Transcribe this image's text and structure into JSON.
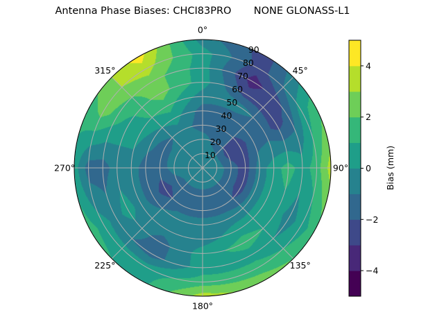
{
  "chart_data": {
    "type": "heatmap",
    "subtype": "polar-contour",
    "title": "Antenna Phase Biases: CHCI83PRO       NONE GLONASS-L1",
    "colorbar_label": "Bias (mm)",
    "colormap": "viridis",
    "levels": [
      -5,
      -4,
      -3,
      -2,
      -1,
      0,
      1,
      2,
      3,
      4,
      5
    ],
    "level_colors": [
      "#440154",
      "#482878",
      "#3e4989",
      "#31688e",
      "#26828e",
      "#1f9e89",
      "#35b779",
      "#6ece58",
      "#b5de2b",
      "#fde725"
    ],
    "colorbar_ticks": [
      "−4",
      "−2",
      "0",
      "2",
      "4"
    ],
    "colorbar_tick_values": [
      -4,
      -2,
      0,
      2,
      4
    ],
    "angular_direction": "clockwise",
    "angular_zero": "top",
    "angular_ticks": [
      "0°",
      "45°",
      "90°",
      "135°",
      "180°",
      "225°",
      "270°",
      "315°"
    ],
    "radial_ticks": [
      "10",
      "20",
      "30",
      "40",
      "50",
      "60",
      "70",
      "80",
      "90"
    ],
    "radial_range": [
      0,
      90
    ],
    "grid": true,
    "azimuth_deg": [
      0,
      30,
      60,
      90,
      120,
      150,
      180,
      210,
      240,
      270,
      300,
      330
    ],
    "zenith_deg": [
      0,
      10,
      20,
      30,
      40,
      50,
      60,
      70,
      80,
      90
    ],
    "bias_mm": [
      [
        -0.5,
        -0.5,
        -0.5,
        -1.5,
        -1.5,
        -0.5,
        0.5,
        0.5,
        0.5,
        -0.5
      ],
      [
        -0.5,
        -0.5,
        -1.5,
        -1.5,
        -1.5,
        -0.5,
        -2.5,
        -3.5,
        -2.5,
        -2.5
      ],
      [
        -0.5,
        -0.5,
        -2.5,
        -2.5,
        -1.5,
        -1.5,
        -2.5,
        -1.5,
        0.5,
        1.5
      ],
      [
        -0.5,
        -0.5,
        -1.5,
        -2.5,
        -0.5,
        0.5,
        1.5,
        0.5,
        1.5,
        3.5
      ],
      [
        -0.5,
        -0.5,
        -1.5,
        -2.5,
        -0.5,
        0.5,
        0.5,
        -0.5,
        0.5,
        1.5
      ],
      [
        -0.5,
        -0.5,
        -1.5,
        -1.5,
        -0.5,
        0.5,
        1.5,
        0.5,
        1.5,
        2.5
      ],
      [
        -0.5,
        -0.5,
        -1.5,
        -1.5,
        -0.5,
        -0.5,
        0.5,
        0.5,
        1.5,
        3.5
      ],
      [
        -0.5,
        -0.5,
        -1.5,
        -1.5,
        -0.5,
        -0.5,
        -1.5,
        -1.5,
        0.5,
        0.5
      ],
      [
        -0.5,
        -0.5,
        -1.5,
        -2.5,
        -1.5,
        -0.5,
        0.5,
        -0.5,
        0.5,
        1.5
      ],
      [
        -0.5,
        -0.5,
        -0.5,
        -1.5,
        -1.5,
        -0.5,
        -0.5,
        -1.5,
        -1.5,
        0.5
      ],
      [
        -0.5,
        -0.5,
        -0.5,
        -1.5,
        -0.5,
        0.5,
        0.5,
        1.5,
        2.5,
        1.5
      ],
      [
        -0.5,
        -0.5,
        -0.5,
        -0.5,
        0.5,
        1.5,
        2.5,
        2.5,
        3.5,
        4.5
      ]
    ]
  }
}
